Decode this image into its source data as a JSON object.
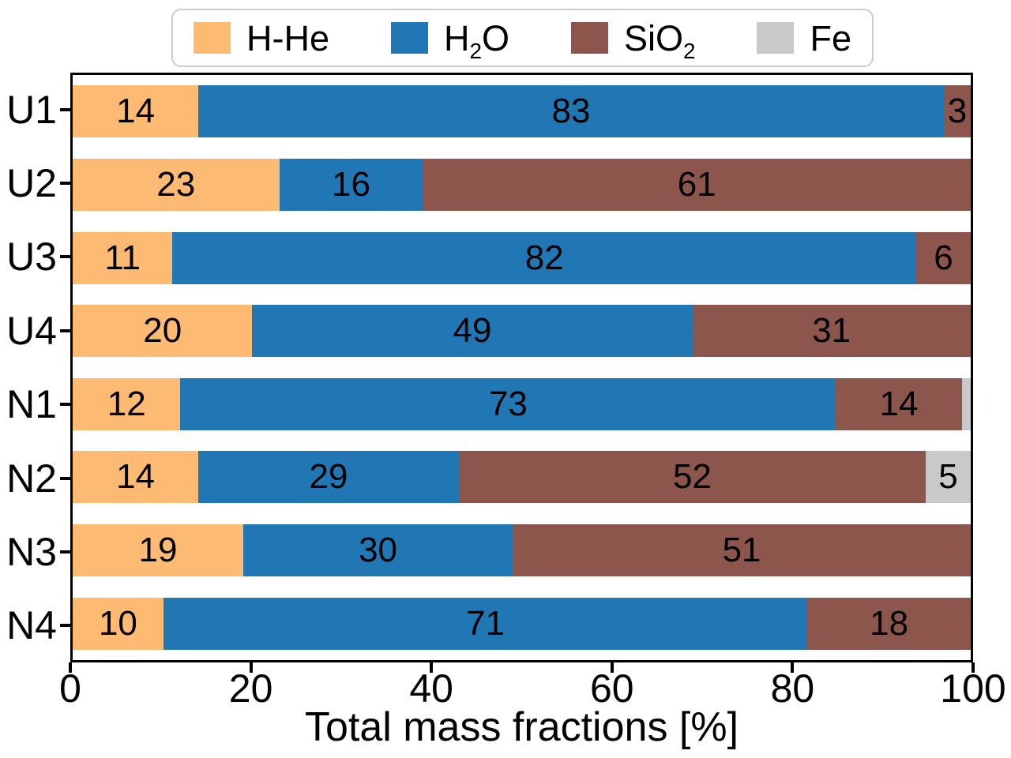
{
  "chart_data": {
    "type": "bar",
    "orientation": "horizontal",
    "stacked": true,
    "title": "",
    "xlabel": "Total mass fractions [%]",
    "ylabel": "",
    "xlim": [
      0,
      100
    ],
    "x_ticks": [
      0,
      20,
      40,
      60,
      80,
      100
    ],
    "grid": false,
    "legend_position": "top center",
    "series_keys": [
      "H-He",
      "H2O",
      "SiO2",
      "Fe"
    ],
    "colors": {
      "H-He": "#fcba73",
      "H2O": "#2077b4",
      "SiO2": "#8d564c",
      "Fe": "#c9c9c9",
      "axis": "#000000",
      "legend_border": "#cccccc"
    },
    "legend": [
      {
        "key": "H-He",
        "pre": "H-He",
        "sub": "",
        "post": ""
      },
      {
        "key": "H2O",
        "pre": "H",
        "sub": "2",
        "post": "O"
      },
      {
        "key": "SiO2",
        "pre": "SiO",
        "sub": "2",
        "post": ""
      },
      {
        "key": "Fe",
        "pre": "Fe",
        "sub": "",
        "post": ""
      }
    ],
    "categories": [
      "U1",
      "U2",
      "U3",
      "U4",
      "N1",
      "N2",
      "N3",
      "N4"
    ],
    "rows": [
      {
        "category": "U1",
        "segments": [
          {
            "key": "H-He",
            "value": 14,
            "label": "14"
          },
          {
            "key": "H2O",
            "value": 83,
            "label": "83"
          },
          {
            "key": "SiO2",
            "value": 3,
            "label": "3"
          }
        ]
      },
      {
        "category": "U2",
        "segments": [
          {
            "key": "H-He",
            "value": 23,
            "label": "23"
          },
          {
            "key": "H2O",
            "value": 16,
            "label": "16"
          },
          {
            "key": "SiO2",
            "value": 61,
            "label": "61"
          }
        ]
      },
      {
        "category": "U3",
        "segments": [
          {
            "key": "H-He",
            "value": 11,
            "label": "11"
          },
          {
            "key": "H2O",
            "value": 82,
            "label": "82"
          },
          {
            "key": "SiO2",
            "value": 6,
            "label": "6"
          }
        ]
      },
      {
        "category": "U4",
        "segments": [
          {
            "key": "H-He",
            "value": 20,
            "label": "20"
          },
          {
            "key": "H2O",
            "value": 49,
            "label": "49"
          },
          {
            "key": "SiO2",
            "value": 31,
            "label": "31"
          }
        ]
      },
      {
        "category": "N1",
        "segments": [
          {
            "key": "H-He",
            "value": 12,
            "label": "12"
          },
          {
            "key": "H2O",
            "value": 73,
            "label": "73"
          },
          {
            "key": "SiO2",
            "value": 14,
            "label": "14"
          },
          {
            "key": "Fe",
            "value": 1,
            "label": ""
          }
        ]
      },
      {
        "category": "N2",
        "segments": [
          {
            "key": "H-He",
            "value": 14,
            "label": "14"
          },
          {
            "key": "H2O",
            "value": 29,
            "label": "29"
          },
          {
            "key": "SiO2",
            "value": 52,
            "label": "52"
          },
          {
            "key": "Fe",
            "value": 5,
            "label": "5"
          }
        ]
      },
      {
        "category": "N3",
        "segments": [
          {
            "key": "H-He",
            "value": 19,
            "label": "19"
          },
          {
            "key": "H2O",
            "value": 30,
            "label": "30"
          },
          {
            "key": "SiO2",
            "value": 51,
            "label": "51"
          }
        ]
      },
      {
        "category": "N4",
        "segments": [
          {
            "key": "H-He",
            "value": 10,
            "label": "10"
          },
          {
            "key": "H2O",
            "value": 71,
            "label": "71"
          },
          {
            "key": "SiO2",
            "value": 18,
            "label": "18"
          }
        ]
      }
    ]
  }
}
